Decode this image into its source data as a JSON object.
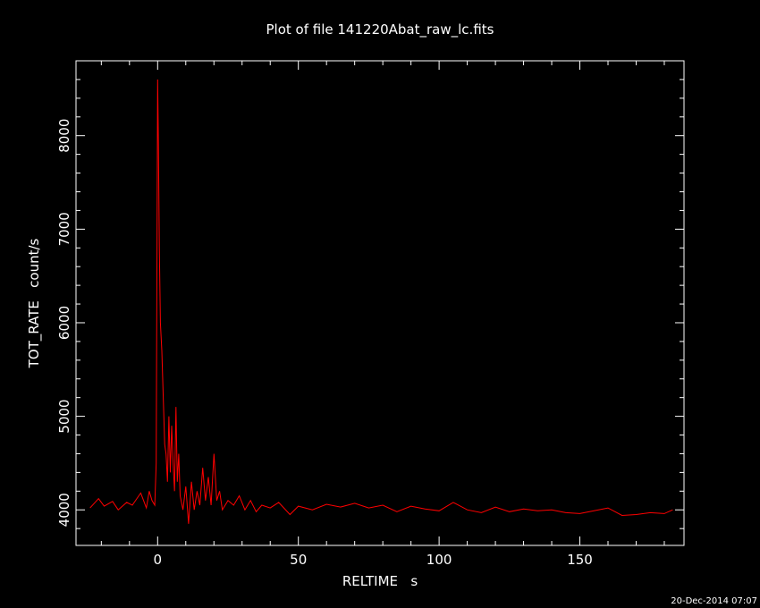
{
  "chart_data": {
    "type": "line",
    "title": "Plot of file 141220Abat_raw_lc.fits",
    "xlabel": "RELTIME   s",
    "ylabel": "TOT_RATE   count/s",
    "xlim": [
      -29,
      187
    ],
    "ylim": [
      3620,
      8800
    ],
    "xticks": [
      0,
      50,
      100,
      150
    ],
    "yticks": [
      4000,
      5000,
      6000,
      7000,
      8000
    ],
    "grid": false,
    "colors": {
      "background": "#000000",
      "axes": "#ffffff",
      "series": "#ff0000"
    },
    "series": [
      {
        "x": [
          -24,
          -21,
          -19,
          -16,
          -14,
          -11,
          -9,
          -6,
          -4,
          -3,
          -2,
          -1,
          -0.5,
          0,
          0.3,
          0.6,
          1,
          1.5,
          2,
          2.5,
          3,
          3.5,
          4,
          4.5,
          5,
          5.5,
          6,
          6.5,
          7,
          7.5,
          8,
          9,
          10,
          11,
          12,
          13,
          14,
          15,
          16,
          17,
          18,
          19,
          20,
          21,
          22,
          23,
          25,
          27,
          29,
          31,
          33,
          35,
          37,
          40,
          43,
          47,
          50,
          55,
          60,
          65,
          70,
          75,
          80,
          85,
          90,
          95,
          100,
          105,
          110,
          115,
          120,
          125,
          130,
          135,
          140,
          145,
          150,
          155,
          160,
          165,
          170,
          175,
          180,
          183
        ],
        "y": [
          4020,
          4120,
          4040,
          4090,
          4000,
          4080,
          4050,
          4180,
          4020,
          4200,
          4100,
          4050,
          4500,
          8600,
          7900,
          6800,
          6000,
          5700,
          5200,
          4700,
          4600,
          4300,
          5000,
          4400,
          4900,
          4500,
          4200,
          5100,
          4300,
          4600,
          4150,
          4000,
          4250,
          3850,
          4300,
          4000,
          4200,
          4050,
          4450,
          4100,
          4350,
          4050,
          4600,
          4100,
          4200,
          4000,
          4100,
          4050,
          4150,
          4000,
          4100,
          3980,
          4050,
          4020,
          4080,
          3950,
          4040,
          4000,
          4060,
          4030,
          4070,
          4020,
          4050,
          3980,
          4040,
          4010,
          3990,
          4080,
          4000,
          3970,
          4030,
          3980,
          4010,
          3990,
          4000,
          3970,
          3960,
          3990,
          4020,
          3940,
          3950,
          3970,
          3960,
          4000
        ]
      }
    ]
  },
  "footer": {
    "timestamp": "20-Dec-2014 07:07"
  }
}
